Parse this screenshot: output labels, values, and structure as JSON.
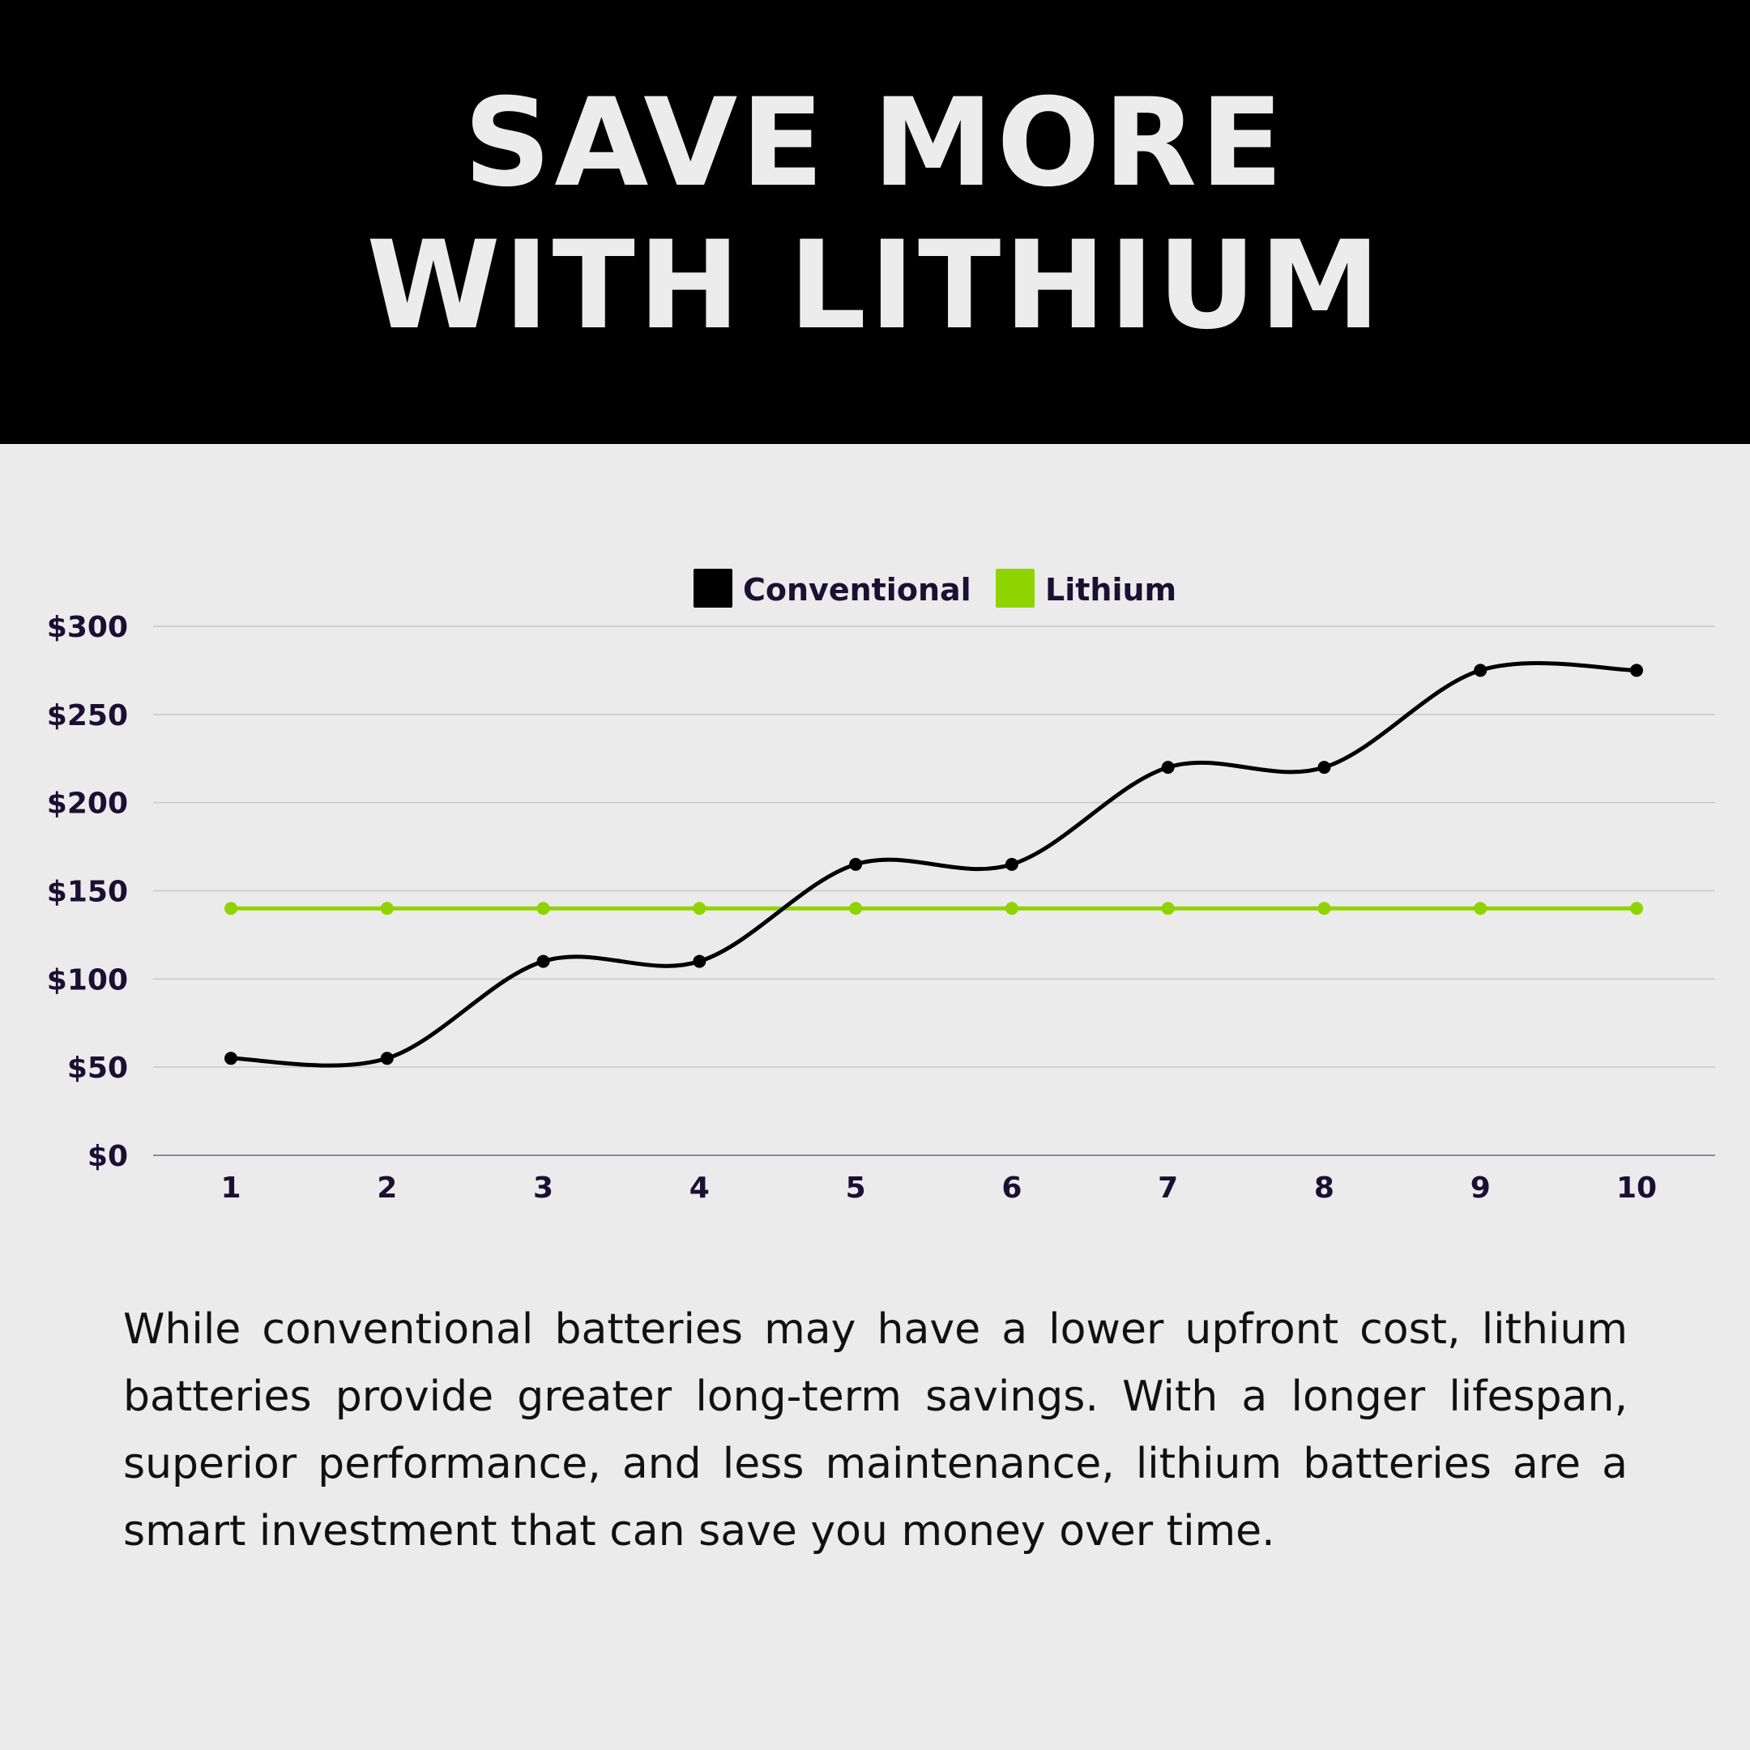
{
  "header": {
    "title_line1": "SAVE MORE",
    "title_line2": "WITH LITHIUM"
  },
  "chart_data": {
    "type": "line",
    "categories": [
      "1",
      "2",
      "3",
      "4",
      "5",
      "6",
      "7",
      "8",
      "9",
      "10"
    ],
    "series": [
      {
        "name": "Conventional",
        "color": "#000000",
        "values": [
          55,
          55,
          110,
          110,
          165,
          165,
          220,
          220,
          275,
          275
        ]
      },
      {
        "name": "Lithium",
        "color": "#8fd400",
        "values": [
          140,
          140,
          140,
          140,
          140,
          140,
          140,
          140,
          140,
          140
        ]
      }
    ],
    "ylim": [
      0,
      300
    ],
    "yticks": [
      0,
      50,
      100,
      150,
      200,
      250,
      300
    ],
    "ytick_labels": [
      "$0",
      "$50",
      "$100",
      "$150",
      "$200",
      "$250",
      "$300"
    ],
    "grid": true,
    "legend": "top-center",
    "smooth": true
  },
  "description": "While conventional batteries may have a lower upfront cost, lithium batteries provide greater long-term savings. With a longer lifespan, superior performance, and less maintenance, lithium batteries are a smart investment that can save you money over time."
}
